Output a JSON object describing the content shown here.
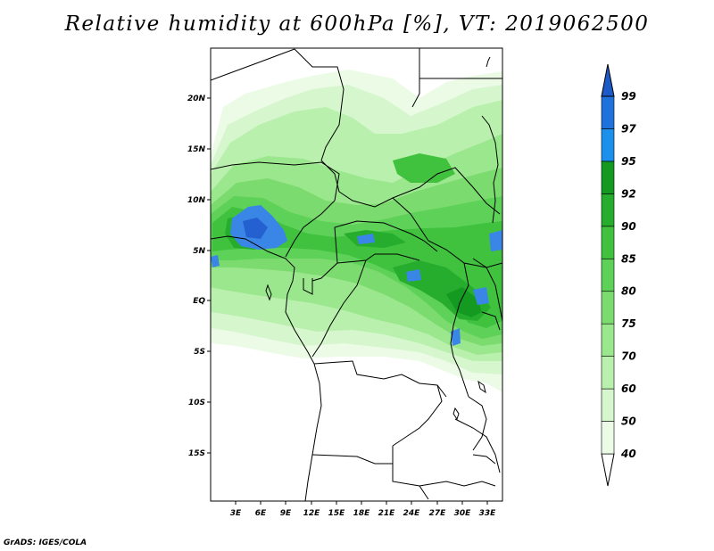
{
  "title": "Relative humidity at 600hPa [%], VT: 2019062500",
  "footer": "GrADS: IGES/COLA",
  "map": {
    "lon_ticks": [
      "3E",
      "6E",
      "9E",
      "12E",
      "15E",
      "18E",
      "21E",
      "24E",
      "27E",
      "30E",
      "33E"
    ],
    "lat_ticks": [
      "20N",
      "15N",
      "10N",
      "5N",
      "EQ",
      "5S",
      "10S",
      "15S"
    ]
  },
  "colorbar": {
    "labels": [
      "40",
      "50",
      "60",
      "70",
      "75",
      "80",
      "85",
      "90",
      "92",
      "95",
      "97",
      "99"
    ],
    "colors": [
      "#ebfbe6",
      "#d6f6cd",
      "#baf0ad",
      "#9be78d",
      "#7cdb6e",
      "#5dd158",
      "#41c23f",
      "#27ad2d",
      "#159a21",
      "#1c90ea",
      "#1f72dc",
      "#1c5ac8"
    ]
  }
}
